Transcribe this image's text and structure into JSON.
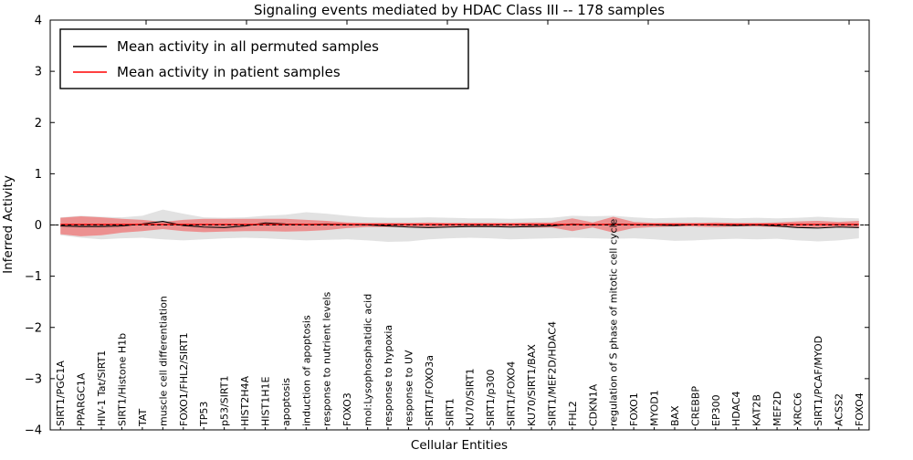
{
  "title": "Signaling events mediated by HDAC Class III -- 178 samples",
  "legend": {
    "items": [
      {
        "label": "Mean activity in all permuted samples",
        "color": "#000000"
      },
      {
        "label": "Mean activity in patient samples",
        "color": "#ff0000"
      }
    ]
  },
  "chart_data": {
    "type": "line",
    "title": "Signaling events mediated by HDAC Class III -- 178 samples",
    "xlabel": "Cellular Entities",
    "ylabel": "Inferred Activity",
    "ylim": [
      -4,
      4
    ],
    "yticks": [
      4,
      3,
      2,
      1,
      0,
      -1,
      -2,
      -3,
      -4
    ],
    "ytick_labels": [
      "4",
      "3",
      "2",
      "1",
      "0",
      "−1",
      "−2",
      "−3",
      "−4"
    ],
    "grid": false,
    "legend_position": "upper left",
    "background": "#ffffff",
    "categories": [
      "SIRT1/PGC1A",
      "PPARGC1A",
      "HIV-1 Tat/SIRT1",
      "SIRT1/Histone H1b",
      "TAT",
      "muscle cell differentiation",
      "FOXO1/FHL2/SIRT1",
      "TP53",
      "p53/SIRT1",
      "HIST2H4A",
      "HIST1H1E",
      "apoptosis",
      "induction of apoptosis",
      "response to nutrient levels",
      "FOXO3",
      "mol:Lysophosphatidic acid",
      "response to hypoxia",
      "response to UV",
      "SIRT1/FOXO3a",
      "SIRT1",
      "KU70/SIRT1",
      "SIRT1/p300",
      "SIRT1/FOXO4",
      "KU70/SIRT1/BAX",
      "SIRT1/MEF2D/HDAC4",
      "FHL2",
      "CDKN1A",
      "regulation of S phase of mitotic cell cycle",
      "FOXO1",
      "MYOD1",
      "BAX",
      "CREBBP",
      "EP300",
      "HDAC4",
      "KAT2B",
      "MEF2D",
      "XRCC6",
      "SIRT1/PCAF/MYOD",
      "ACSS2",
      "FOXO4"
    ],
    "series": [
      {
        "name": "Mean activity in all permuted samples",
        "color": "#000000",
        "style": "solid",
        "width": 1.1,
        "values": [
          -0.02,
          -0.03,
          -0.03,
          -0.02,
          0.02,
          0.07,
          -0.01,
          -0.04,
          -0.05,
          -0.02,
          0.04,
          0.02,
          0.01,
          0.02,
          0.01,
          0.0,
          -0.02,
          -0.04,
          -0.05,
          -0.04,
          -0.03,
          -0.03,
          -0.04,
          -0.03,
          -0.02,
          0.02,
          0.0,
          0.02,
          0.01,
          0.0,
          -0.01,
          0.01,
          0.0,
          -0.01,
          0.0,
          -0.02,
          -0.05,
          -0.06,
          -0.04,
          -0.05
        ]
      },
      {
        "name": "Mean activity in patient samples",
        "color": "#ff0000",
        "style": "solid",
        "width": 1.4,
        "values": [
          0.01,
          0.01,
          0.01,
          0.01,
          0.01,
          0.01,
          0.01,
          0.01,
          0.01,
          0.01,
          0.01,
          0.01,
          0.01,
          0.01,
          0.01,
          0.01,
          0.01,
          0.01,
          0.01,
          0.01,
          0.01,
          0.01,
          0.01,
          0.01,
          0.01,
          0.01,
          0.01,
          0.01,
          0.01,
          0.01,
          0.01,
          0.01,
          0.01,
          0.01,
          0.01,
          0.01,
          0.01,
          0.01,
          0.01,
          0.01
        ]
      }
    ],
    "baseline": {
      "name": "zero-reference-line",
      "color": "#000000",
      "style": "dashed",
      "value": 0
    },
    "bands": [
      {
        "name": "permuted-samples-range",
        "color": "#bfbfbf",
        "opacity": 0.45,
        "upper": [
          0.15,
          0.18,
          0.16,
          0.15,
          0.18,
          0.3,
          0.22,
          0.15,
          0.14,
          0.15,
          0.18,
          0.2,
          0.25,
          0.22,
          0.18,
          0.15,
          0.14,
          0.14,
          0.15,
          0.14,
          0.13,
          0.13,
          0.12,
          0.13,
          0.14,
          0.18,
          0.17,
          0.18,
          0.15,
          0.13,
          0.14,
          0.15,
          0.14,
          0.13,
          0.14,
          0.13,
          0.14,
          0.16,
          0.14,
          0.13
        ],
        "lower": [
          -0.2,
          -0.25,
          -0.28,
          -0.26,
          -0.25,
          -0.28,
          -0.3,
          -0.28,
          -0.26,
          -0.25,
          -0.26,
          -0.28,
          -0.3,
          -0.29,
          -0.28,
          -0.3,
          -0.33,
          -0.32,
          -0.28,
          -0.26,
          -0.25,
          -0.26,
          -0.28,
          -0.27,
          -0.26,
          -0.25,
          -0.26,
          -0.27,
          -0.26,
          -0.28,
          -0.31,
          -0.3,
          -0.28,
          -0.27,
          -0.28,
          -0.27,
          -0.3,
          -0.32,
          -0.3,
          -0.26
        ]
      },
      {
        "name": "patient-samples-range",
        "color": "#ff0000",
        "opacity": 0.36,
        "upper": [
          0.14,
          0.17,
          0.15,
          0.12,
          0.1,
          0.06,
          0.1,
          0.12,
          0.12,
          0.12,
          0.12,
          0.12,
          0.1,
          0.08,
          0.05,
          0.04,
          0.04,
          0.04,
          0.05,
          0.04,
          0.04,
          0.04,
          0.04,
          0.05,
          0.05,
          0.13,
          0.05,
          0.16,
          0.06,
          0.04,
          0.04,
          0.04,
          0.05,
          0.04,
          0.04,
          0.05,
          0.07,
          0.08,
          0.06,
          0.08
        ],
        "lower": [
          -0.18,
          -0.22,
          -0.2,
          -0.15,
          -0.12,
          -0.08,
          -0.12,
          -0.14,
          -0.13,
          -0.12,
          -0.12,
          -0.13,
          -0.12,
          -0.1,
          -0.06,
          -0.04,
          -0.04,
          -0.04,
          -0.05,
          -0.04,
          -0.04,
          -0.04,
          -0.04,
          -0.05,
          -0.05,
          -0.12,
          -0.05,
          -0.15,
          -0.06,
          -0.04,
          -0.03,
          -0.03,
          -0.04,
          -0.03,
          -0.03,
          -0.04,
          -0.05,
          -0.05,
          -0.04,
          -0.06
        ]
      }
    ]
  }
}
